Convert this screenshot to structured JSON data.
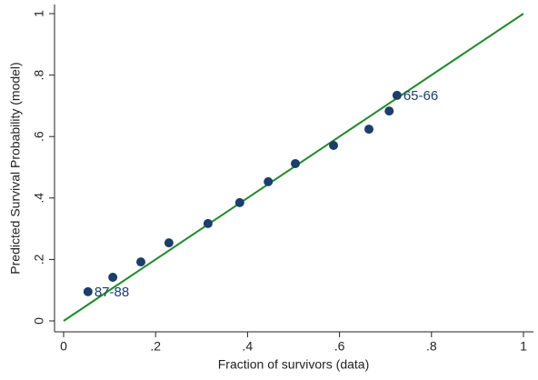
{
  "chart_data": {
    "type": "scatter",
    "x_label": "Fraction of survivors (data)",
    "y_label": "Predicted Survival Probability (model)",
    "x": [
      0.053,
      0.107,
      0.168,
      0.229,
      0.314,
      0.383,
      0.445,
      0.504,
      0.587,
      0.664,
      0.708,
      0.725
    ],
    "y": [
      0.095,
      0.142,
      0.192,
      0.254,
      0.317,
      0.385,
      0.453,
      0.512,
      0.571,
      0.624,
      0.683,
      0.734
    ],
    "point_labels": [
      "87-88",
      null,
      null,
      null,
      null,
      null,
      null,
      null,
      null,
      null,
      null,
      "65-66"
    ],
    "color": "#1b3e6a",
    "line": {
      "x": [
        0,
        1
      ],
      "y": [
        0,
        1
      ],
      "color": "#1f8a2a"
    },
    "xlim": [
      0,
      1
    ],
    "ylim": [
      0,
      1
    ],
    "xticks": [
      0,
      {
        "value": 0.2,
        "label": ".2"
      },
      {
        "value": 0.4,
        "label": ".4"
      },
      {
        "value": 0.6,
        "label": ".6"
      },
      {
        "value": 0.8,
        "label": ".8"
      },
      1
    ],
    "yticks": [
      0,
      {
        "value": 0.2,
        "label": ".2"
      },
      {
        "value": 0.4,
        "label": ".4"
      },
      {
        "value": 0.6,
        "label": ".6"
      },
      {
        "value": 0.8,
        "label": ".8"
      },
      1
    ],
    "grid": false
  }
}
